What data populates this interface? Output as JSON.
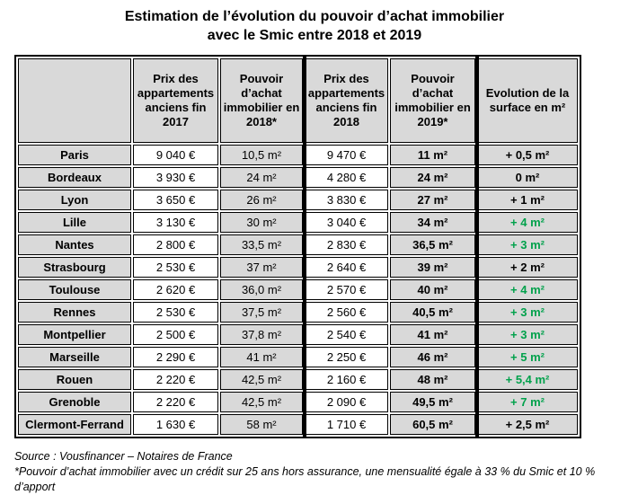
{
  "title": {
    "line1": "Estimation de l’évolution du pouvoir d’achat immobilier",
    "line2": "avec le Smic entre 2018 et 2019"
  },
  "chart_data": {
    "type": "table",
    "title": "Estimation de l’évolution du pouvoir d’achat immobilier avec le Smic entre 2018 et 2019",
    "columns": [
      "",
      "Prix des appartements anciens fin 2017",
      "Pouvoir d’achat immobilier en 2018*",
      "Prix des appartements anciens fin 2018",
      "Pouvoir d’achat immobilier en 2019*",
      "Evolution de la surface en m²"
    ],
    "rows": [
      [
        "Paris",
        "9 040 €",
        "10,5 m²",
        "9 470 €",
        "11 m²",
        "+ 0,5 m²"
      ],
      [
        "Bordeaux",
        "3 930 €",
        "24 m²",
        "4 280 €",
        "24 m²",
        "0 m²"
      ],
      [
        "Lyon",
        "3 650 €",
        "26 m²",
        "3 830 €",
        "27 m²",
        "+ 1 m²"
      ],
      [
        "Lille",
        "3 130 €",
        "30 m²",
        "3 040 €",
        "34 m²",
        "+ 4 m²"
      ],
      [
        "Nantes",
        "2 800 €",
        "33,5 m²",
        "2 830 €",
        "36,5 m²",
        "+ 3 m²"
      ],
      [
        "Strasbourg",
        "2 530 €",
        "37 m²",
        "2 640 €",
        "39 m²",
        "+ 2 m²"
      ],
      [
        "Toulouse",
        "2 620 €",
        "36,0 m²",
        "2 570 €",
        "40 m²",
        "+ 4 m²"
      ],
      [
        "Rennes",
        "2 530 €",
        "37,5 m²",
        "2 560 €",
        "40,5 m²",
        "+ 3 m²"
      ],
      [
        "Montpellier",
        "2 500 €",
        "37,8 m²",
        "2 540 €",
        "41 m²",
        "+ 3 m²"
      ],
      [
        "Marseille",
        "2 290 €",
        "41 m²",
        "2 250 €",
        "46 m²",
        "+ 5 m²"
      ],
      [
        "Rouen",
        "2 220 €",
        "42,5 m²",
        "2 160 €",
        "48 m²",
        "+ 5,4 m²"
      ],
      [
        "Grenoble",
        "2 220 €",
        "42,5 m²",
        "2 090 €",
        "49,5 m²",
        "+ 7 m²"
      ],
      [
        "Clermont-Ferrand",
        "1 630 €",
        "58 m²",
        "1 710 €",
        "60,5 m²",
        "+ 2,5 m²"
      ]
    ],
    "evolution_green": [
      false,
      false,
      false,
      true,
      true,
      false,
      true,
      true,
      true,
      true,
      true,
      true,
      false
    ]
  },
  "footer": {
    "source": "Source : Vousfinancer – Notaires de France",
    "note": "*Pouvoir d’achat immobilier avec un crédit sur 25 ans hors assurance, une mensualité égale à 33 % du Smic et 10 % d’apport"
  },
  "colors": {
    "green": "#00a14b",
    "cell_gray": "#d9d9d9",
    "border_black": "#000000"
  }
}
